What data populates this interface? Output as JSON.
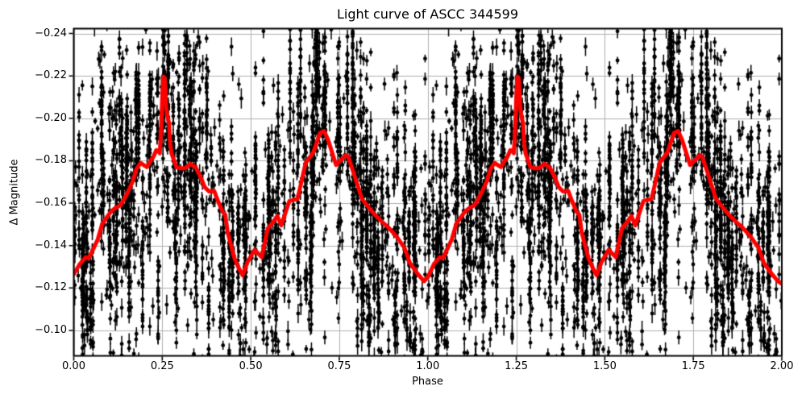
{
  "title": "Light curve of ASCC 344599",
  "chart_data": {
    "type": "scatter",
    "title": "Light curve of ASCC 344599",
    "xlabel": "Phase",
    "ylabel": "Δ Magnitude",
    "xlim": [
      0.0,
      2.0
    ],
    "ylim_display_top_to_bottom": [
      -0.2423,
      -0.088
    ],
    "y_axis_inverted": true,
    "grid": true,
    "legend": "none",
    "x_ticks": [
      {
        "value": 0.0,
        "label": "0.00"
      },
      {
        "value": 0.25,
        "label": "0.25"
      },
      {
        "value": 0.5,
        "label": "0.50"
      },
      {
        "value": 0.75,
        "label": "0.75"
      },
      {
        "value": 1.0,
        "label": "1.00"
      },
      {
        "value": 1.25,
        "label": "1.25"
      },
      {
        "value": 1.5,
        "label": "1.50"
      },
      {
        "value": 1.75,
        "label": "1.75"
      },
      {
        "value": 2.0,
        "label": "2.00"
      }
    ],
    "y_ticks": [
      {
        "value": -0.24,
        "label": "−0.24"
      },
      {
        "value": -0.22,
        "label": "−0.22"
      },
      {
        "value": -0.2,
        "label": "−0.20"
      },
      {
        "value": -0.18,
        "label": "−0.18"
      },
      {
        "value": -0.16,
        "label": "−0.16"
      },
      {
        "value": -0.14,
        "label": "−0.14"
      },
      {
        "value": -0.12,
        "label": "−0.12"
      },
      {
        "value": -0.1,
        "label": "−0.10"
      }
    ],
    "series": [
      {
        "name": "smoothed mean curve",
        "type": "line",
        "color": "#ff0000",
        "linewidth": 5,
        "cycles": 2,
        "cycle_points": [
          [
            0.0,
            -0.1265
          ],
          [
            0.018,
            -0.1315
          ],
          [
            0.034,
            -0.1345
          ],
          [
            0.042,
            -0.134
          ],
          [
            0.057,
            -0.139
          ],
          [
            0.068,
            -0.143
          ],
          [
            0.08,
            -0.15
          ],
          [
            0.09,
            -0.1525
          ],
          [
            0.105,
            -0.156
          ],
          [
            0.12,
            -0.158
          ],
          [
            0.132,
            -0.159
          ],
          [
            0.143,
            -0.162
          ],
          [
            0.155,
            -0.166
          ],
          [
            0.166,
            -0.17
          ],
          [
            0.177,
            -0.176
          ],
          [
            0.189,
            -0.179
          ],
          [
            0.199,
            -0.1778
          ],
          [
            0.207,
            -0.177
          ],
          [
            0.217,
            -0.18
          ],
          [
            0.227,
            -0.1825
          ],
          [
            0.233,
            -0.185
          ],
          [
            0.239,
            -0.1845
          ],
          [
            0.243,
            -0.1835
          ],
          [
            0.247,
            -0.196
          ],
          [
            0.25,
            -0.21
          ],
          [
            0.253,
            -0.2197
          ],
          [
            0.257,
            -0.219
          ],
          [
            0.261,
            -0.2053
          ],
          [
            0.266,
            -0.1996
          ],
          [
            0.269,
            -0.198
          ],
          [
            0.272,
            -0.1886
          ],
          [
            0.276,
            -0.1835
          ],
          [
            0.284,
            -0.1798
          ],
          [
            0.29,
            -0.177
          ],
          [
            0.3,
            -0.1765
          ],
          [
            0.314,
            -0.1765
          ],
          [
            0.33,
            -0.1785
          ],
          [
            0.344,
            -0.177
          ],
          [
            0.359,
            -0.172
          ],
          [
            0.37,
            -0.1675
          ],
          [
            0.382,
            -0.1655
          ],
          [
            0.397,
            -0.1657
          ],
          [
            0.405,
            -0.162
          ],
          [
            0.42,
            -0.156
          ],
          [
            0.428,
            -0.1545
          ],
          [
            0.435,
            -0.146
          ],
          [
            0.454,
            -0.134
          ],
          [
            0.465,
            -0.1297
          ],
          [
            0.477,
            -0.126
          ],
          [
            0.491,
            -0.1323
          ],
          [
            0.511,
            -0.138
          ],
          [
            0.531,
            -0.1345
          ],
          [
            0.548,
            -0.148
          ],
          [
            0.564,
            -0.1513
          ],
          [
            0.575,
            -0.154
          ],
          [
            0.586,
            -0.1495
          ],
          [
            0.609,
            -0.161
          ],
          [
            0.632,
            -0.162
          ],
          [
            0.643,
            -0.17
          ],
          [
            0.655,
            -0.179
          ],
          [
            0.677,
            -0.184
          ],
          [
            0.695,
            -0.193
          ],
          [
            0.707,
            -0.194
          ],
          [
            0.718,
            -0.19
          ],
          [
            0.741,
            -0.178
          ],
          [
            0.768,
            -0.1825
          ],
          [
            0.775,
            -0.182
          ],
          [
            0.795,
            -0.172
          ],
          [
            0.814,
            -0.162
          ],
          [
            0.833,
            -0.158
          ],
          [
            0.852,
            -0.1543
          ],
          [
            0.875,
            -0.1505
          ],
          [
            0.886,
            -0.149
          ],
          [
            0.911,
            -0.1445
          ],
          [
            0.934,
            -0.139
          ],
          [
            0.95,
            -0.1316
          ],
          [
            0.968,
            -0.1274
          ],
          [
            0.989,
            -0.1232
          ]
        ],
        "junction_point": [
          1.0,
          -0.125
        ],
        "end_point": [
          2.0,
          -0.122
        ]
      },
      {
        "name": "photometric observations",
        "type": "errorbar-scatter",
        "color": "#000000",
        "marker": "circle",
        "marker_radius_px": 2.4,
        "note": "dense point cloud with vertical error bars, duplicated over two phase cycles; individual points unresolvable, regenerated statistically around the mean curve",
        "generator": {
          "seed": 20,
          "columns_per_cycle": 170,
          "col_points_min": 4,
          "col_points_max": 32,
          "center_sigma": 0.028,
          "col_sigma_min": 0.008,
          "col_sigma_max": 0.03,
          "tail_fraction": 0.15,
          "tail_sigma": 0.05,
          "isolated_per_cycle": 450,
          "isolated_sigma": 0.042,
          "err_min": 0.0015,
          "err_max": 0.005
        }
      }
    ],
    "colors": {
      "background": "#ffffff",
      "grid": "#b0b0b0",
      "spine": "#000000",
      "scatter": "#000000",
      "mean_curve": "#ff0000"
    }
  }
}
